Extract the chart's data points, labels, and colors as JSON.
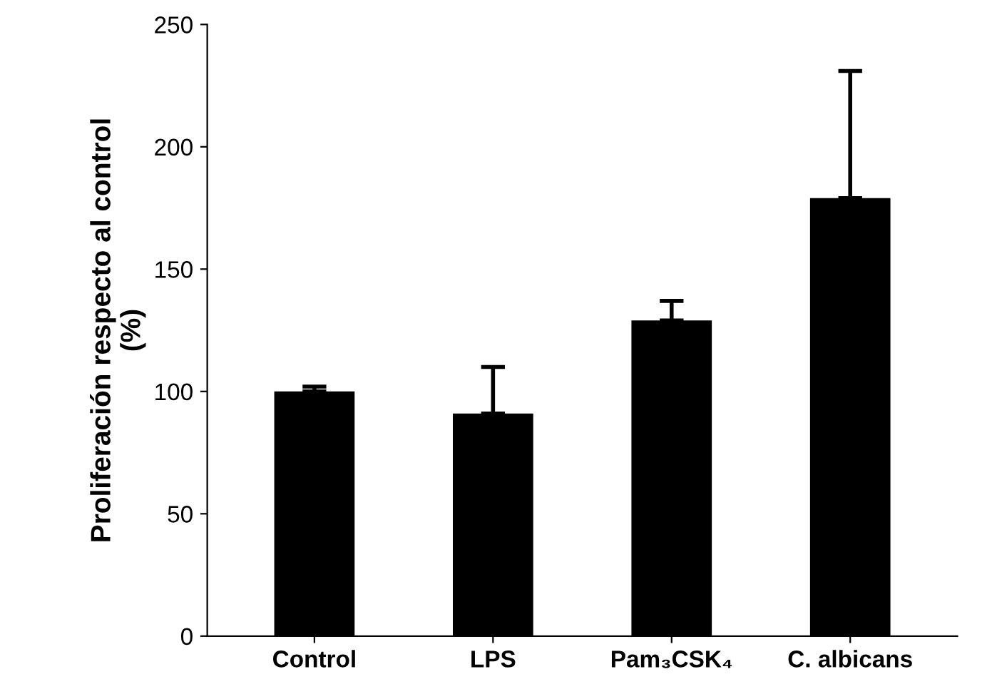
{
  "chart_data": {
    "type": "bar",
    "ylabel": "Proliferación respecto al control\n(%)",
    "categories": [
      "Control",
      "LPS",
      "Pam₃CSK₄",
      "C. albicans"
    ],
    "values": [
      100,
      91,
      129,
      179
    ],
    "errors": [
      [
        100,
        102
      ],
      [
        91,
        110
      ],
      [
        129,
        137
      ],
      [
        179,
        231
      ]
    ],
    "color": "#000000",
    "ylim": [
      0,
      250
    ],
    "yticks": [
      0,
      50,
      100,
      150,
      200,
      250
    ],
    "grid": false
  }
}
